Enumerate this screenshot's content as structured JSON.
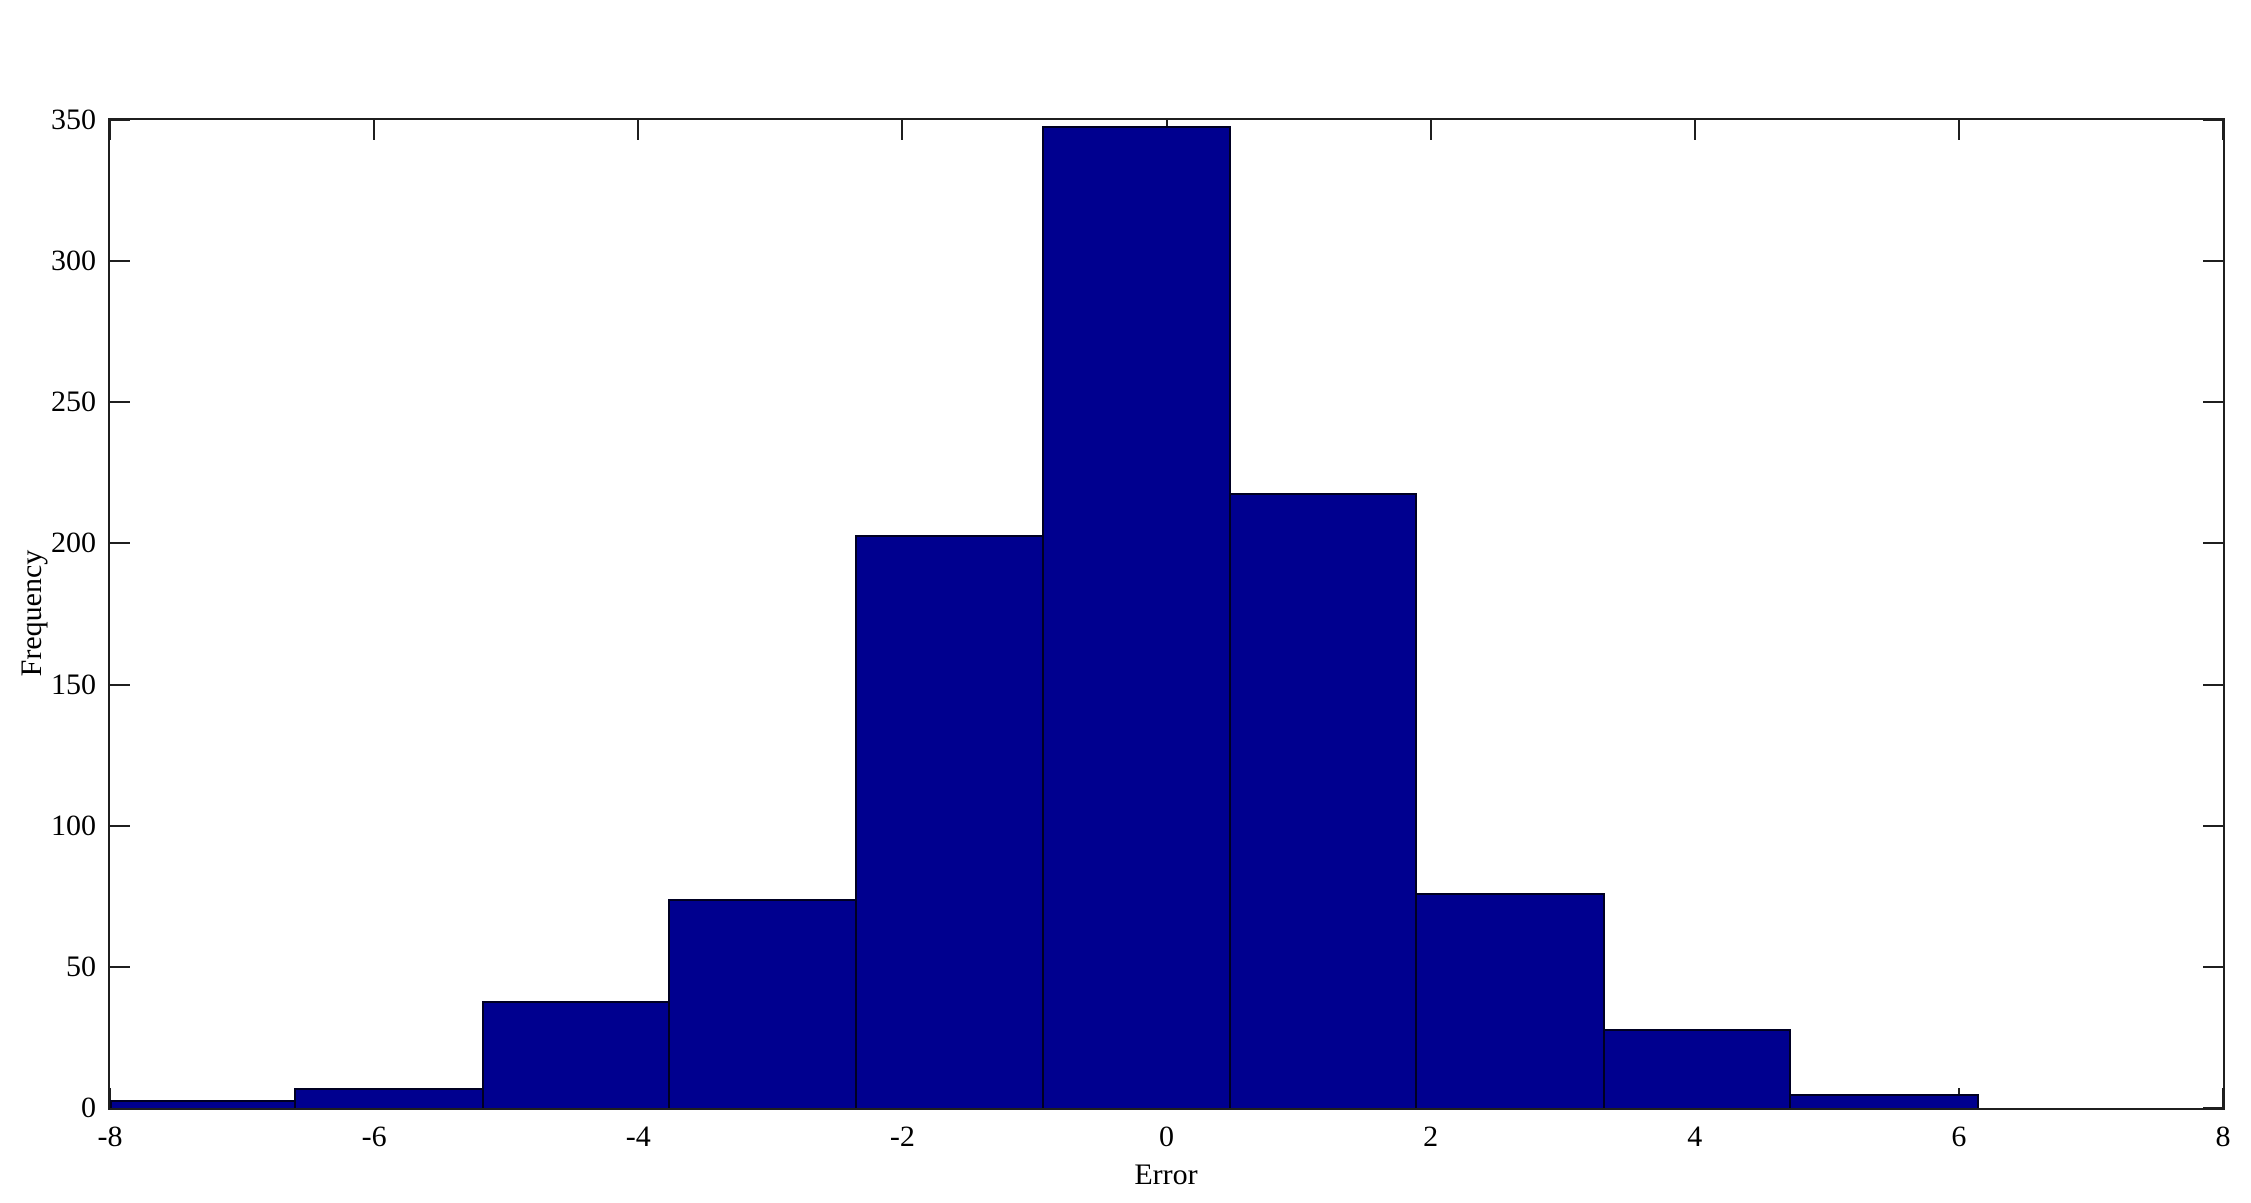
{
  "figure": {
    "background": "#ffffff"
  },
  "chart_data": {
    "type": "bar",
    "subtype": "histogram",
    "title": "",
    "xlabel": "Error",
    "ylabel": "Frequency",
    "xlim": [
      -8,
      8
    ],
    "ylim": [
      0,
      350
    ],
    "x_ticks": [
      -8,
      -6,
      -4,
      -2,
      0,
      2,
      4,
      6,
      8
    ],
    "y_ticks": [
      0,
      50,
      100,
      150,
      200,
      250,
      300,
      350
    ],
    "bin_edges": [
      -8.0,
      -6.59,
      -5.17,
      -3.76,
      -2.34,
      -0.93,
      0.49,
      1.9,
      3.32,
      4.73,
      6.15
    ],
    "frequencies": [
      3,
      7,
      38,
      74,
      203,
      348,
      218,
      76,
      28,
      5
    ],
    "grid": false,
    "legend": null,
    "tick_direction": "in",
    "box": true,
    "colors": {
      "bar_fill": "#00008F",
      "bar_edge": "#000022",
      "axis": "#1f1f1f",
      "text": "#000000"
    }
  }
}
